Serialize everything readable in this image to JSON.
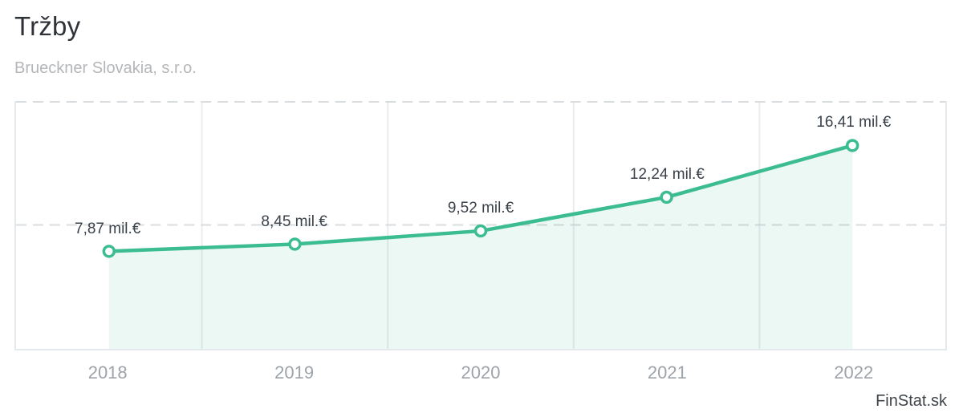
{
  "header": {
    "title": "Tržby",
    "subtitle": "Brueckner Slovakia, s.r.o."
  },
  "watermark": "FinStat.sk",
  "colors": {
    "line": "#3cbd91",
    "marker_fill": "#ffffff",
    "area_fill": "rgba(60,189,145,0.10)",
    "grid_vertical": "#e9edf0",
    "grid_dashed": "#d8dcdf",
    "point_label": "#3b424a",
    "axis_label": "#9da3a9"
  },
  "chart_data": {
    "type": "area",
    "title": "Tržby",
    "subtitle": "Brueckner Slovakia, s.r.o.",
    "categories": [
      "2018",
      "2019",
      "2020",
      "2021",
      "2022"
    ],
    "values": [
      7.87,
      8.45,
      9.52,
      12.24,
      16.41
    ],
    "point_labels": [
      "7,87 mil.€",
      "8,45 mil.€",
      "9,52 mil.€",
      "12,24 mil.€",
      "16,41 mil.€"
    ],
    "unit": "mil.€",
    "xlabel": "",
    "ylabel": "",
    "ylim": [
      0,
      20
    ],
    "gridlines_y": [
      10,
      20
    ],
    "grid": "dashed-horizontal, solid-vertical",
    "legend": false
  }
}
